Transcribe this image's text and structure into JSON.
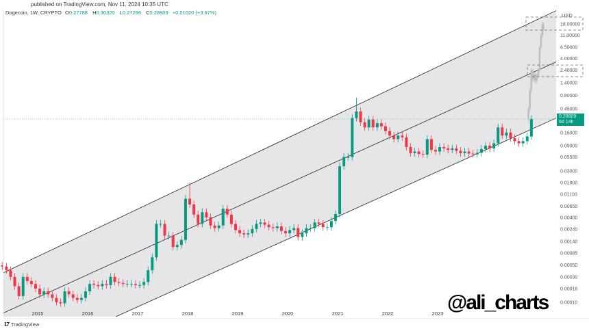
{
  "header": {
    "published": "published on TradingView.com, Nov 11, 2024 10:35 UTC",
    "symbol": "Dogecoin, 1W, CRYPTO",
    "open_label": "O",
    "open": "0.27788",
    "high_label": "H",
    "high": "0.30320",
    "low_label": "L",
    "low": "0.27296",
    "close_label": "C",
    "close": "0.28809",
    "change": "+0.01020 (+3.67%)"
  },
  "price_label": {
    "value": "0.28809",
    "countdown": "6d 14h"
  },
  "watermark": "@ali_charts",
  "footer": {
    "brand": "TradingView",
    "logo": "17"
  },
  "colors": {
    "up": "#089981",
    "down": "#f23645",
    "channel_fill": "#e6e6e9",
    "projection": "#bdbdbd",
    "price_line": "#089981"
  },
  "chart_data": {
    "type": "candlestick",
    "scale": "log",
    "currency_label": "USD",
    "y_ticks": [
      "18.00000",
      "11.00000",
      "6.50000",
      "4.00000",
      "2.40000",
      "1.40000",
      "0.80000",
      "0.45000",
      "0.16000",
      "0.09000",
      "0.05500",
      "0.03000",
      "0.01800",
      "0.01100",
      "0.00650",
      "0.00400",
      "0.00240",
      "0.00140",
      "0.00085",
      "0.00050",
      "0.00030",
      "0.00018",
      "0.00010"
    ],
    "x_ticks": [
      "2015",
      "2016",
      "2017",
      "2018",
      "2019",
      "2020",
      "2021",
      "2022",
      "2023"
    ],
    "ylim": [
      0.0001,
      18
    ],
    "current_price": 0.28809,
    "start_month": "2014-04",
    "monthly_close": [
      0.00047,
      0.0004,
      0.0003,
      0.0002,
      0.00013,
      0.0003,
      0.00025,
      0.00022,
      0.00018,
      0.00014,
      0.00016,
      0.00014,
      0.00012,
      0.0001,
      9.5e-05,
      0.00016,
      0.00014,
      0.00012,
      0.00011,
      0.00012,
      0.00016,
      0.00022,
      0.00021,
      0.0002,
      0.00022,
      0.00021,
      0.0003,
      0.00024,
      0.00023,
      0.00022,
      0.00022,
      0.00022,
      0.00021,
      0.00021,
      0.00024,
      0.0004,
      0.0007,
      0.003,
      0.003,
      0.0018,
      0.0018,
      0.0011,
      0.0012,
      0.0015,
      0.009,
      0.007,
      0.0045,
      0.003,
      0.005,
      0.004,
      0.0028,
      0.0025,
      0.0028,
      0.0058,
      0.0045,
      0.003,
      0.0023,
      0.002,
      0.0019,
      0.002,
      0.0024,
      0.003,
      0.0032,
      0.0029,
      0.0026,
      0.0025,
      0.0027,
      0.0022,
      0.002,
      0.0023,
      0.0025,
      0.0017,
      0.002,
      0.0025,
      0.0025,
      0.0032,
      0.003,
      0.0026,
      0.0026,
      0.0034,
      0.0046,
      0.037,
      0.055,
      0.055,
      0.3,
      0.4,
      0.25,
      0.2,
      0.28,
      0.2,
      0.24,
      0.21,
      0.17,
      0.14,
      0.12,
      0.14,
      0.13,
      0.085,
      0.065,
      0.07,
      0.063,
      0.061,
      0.12,
      0.075,
      0.07,
      0.085,
      0.08,
      0.075,
      0.08,
      0.072,
      0.065,
      0.07,
      0.064,
      0.062,
      0.066,
      0.078,
      0.09,
      0.08,
      0.1,
      0.2,
      0.14,
      0.16,
      0.125,
      0.11,
      0.1,
      0.11,
      0.135,
      0.28809
    ],
    "notable_highs": {
      "2018-01": 0.018,
      "2021-05": 0.73
    },
    "channel": {
      "upper": [
        [
          "2014-04",
          0.00035
        ],
        [
          "2024-12",
          21
        ]
      ],
      "middle": [
        [
          "2014-10",
          0.0001
        ],
        [
          "2024-12",
          2.3
        ]
      ],
      "lower": [
        [
          "2017-03",
          0.0001
        ],
        [
          "2024-12",
          0.2
        ]
      ]
    },
    "projection": [
      [
        "2024-11-25",
        0.45
      ],
      [
        "2024-12-05",
        1.0
      ],
      [
        "2024-12-15",
        2.4
      ],
      [
        "2024-12-25",
        1.6
      ],
      [
        "2025-01-05",
        2.0
      ],
      [
        "2025-01-15",
        1.5
      ],
      [
        "2025-01-25",
        1.9
      ],
      [
        "2025-02-05",
        2.4
      ],
      [
        "2025-02-15",
        6.5
      ],
      [
        "2025-02-25",
        11
      ],
      [
        "2025-03-05",
        18
      ],
      [
        "2025-03-12",
        14
      ]
    ]
  }
}
